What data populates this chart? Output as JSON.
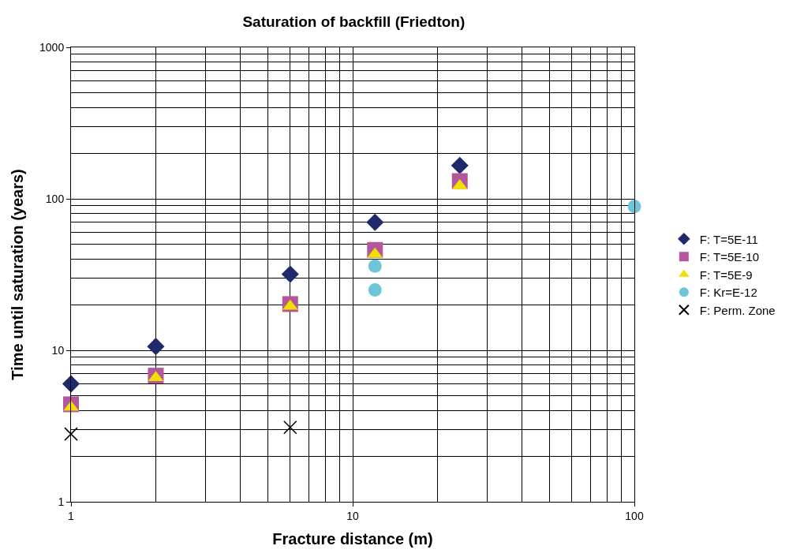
{
  "chart_data": {
    "type": "scatter",
    "title": "Saturation of backfill (Friedton)",
    "xlabel": "Fracture distance (m)",
    "ylabel": "Time until saturation (years)",
    "log": "xy",
    "xlim": [
      1,
      100
    ],
    "ylim": [
      1,
      1000
    ],
    "xticks": [
      1,
      10,
      100
    ],
    "yticks": [
      1,
      10,
      100,
      1000
    ],
    "grid": true,
    "legend": "right",
    "series": [
      {
        "name": "F: T=5E-11",
        "color": "#1f2a6b",
        "marker": "diamond",
        "x": [
          1,
          2,
          6,
          12,
          24
        ],
        "values": [
          6.0,
          10.6,
          31.8,
          70,
          166
        ]
      },
      {
        "name": "F: T=5E-10",
        "color": "#b5559a",
        "marker": "square",
        "x": [
          1,
          2,
          6,
          12,
          24
        ],
        "values": [
          4.4,
          6.8,
          20.2,
          46,
          131
        ]
      },
      {
        "name": "F: T=5E-9",
        "color": "#f0e000",
        "marker": "triangle",
        "x": [
          1,
          2,
          6,
          12,
          24
        ],
        "values": [
          4.2,
          6.6,
          19.5,
          43,
          122
        ]
      },
      {
        "name": "F: Kr=E-12",
        "color": "#6cc5d8",
        "marker": "circle",
        "x": [
          12,
          12,
          100
        ],
        "values": [
          36,
          25,
          89
        ]
      },
      {
        "name": "F: Perm. Zone",
        "color": "#000000",
        "marker": "cross",
        "x": [
          1,
          6
        ],
        "values": [
          2.8,
          3.1
        ]
      }
    ]
  }
}
